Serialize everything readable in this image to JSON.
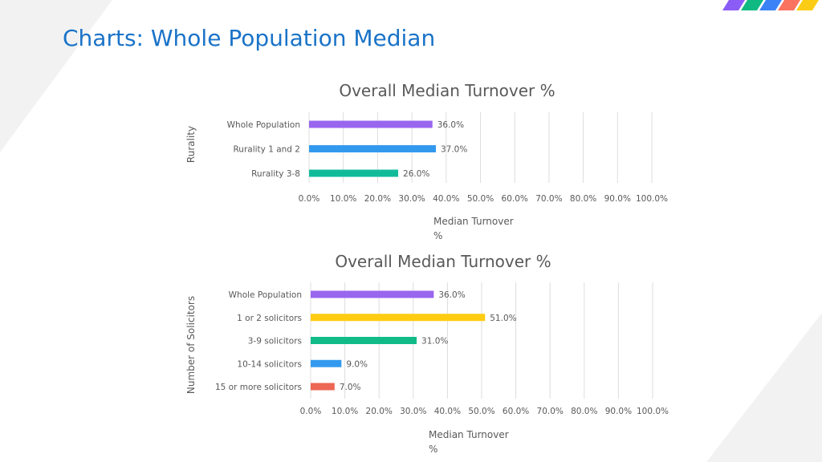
{
  "slide": {
    "title": "Charts: Whole Population Median",
    "colors": {
      "title": "#1a73c8",
      "gridline": "#dddddd",
      "text": "#595959"
    },
    "stripe_colors": [
      "#8b5cf6",
      "#10b981",
      "#3b82f6",
      "#f97360",
      "#facc15"
    ]
  },
  "chart_data": [
    {
      "type": "bar",
      "orientation": "horizontal",
      "title": "Overall Median Turnover %",
      "xlabel": "Median Turnover %",
      "ylabel": "Rurality",
      "xlim": [
        0,
        100
      ],
      "xticks": [
        "0.0%",
        "10.0%",
        "20.0%",
        "30.0%",
        "40.0%",
        "50.0%",
        "60.0%",
        "70.0%",
        "80.0%",
        "90.0%",
        "100.0%"
      ],
      "grid": true,
      "categories": [
        "Whole Population",
        "Rurality 1 and 2",
        "Rurality 3-8"
      ],
      "values": [
        36.0,
        37.0,
        26.0
      ],
      "value_labels": [
        "36.0%",
        "37.0%",
        "26.0%"
      ],
      "colors": [
        "#9966ee",
        "#3399ee",
        "#11bb99"
      ]
    },
    {
      "type": "bar",
      "orientation": "horizontal",
      "title": "Overall Median Turnover %",
      "xlabel": "Median Turnover %",
      "ylabel": "Number of Solicitors",
      "xlim": [
        0,
        100
      ],
      "xticks": [
        "0.0%",
        "10.0%",
        "20.0%",
        "30.0%",
        "40.0%",
        "50.0%",
        "60.0%",
        "70.0%",
        "80.0%",
        "90.0%",
        "100.0%"
      ],
      "grid": true,
      "categories": [
        "Whole Population",
        "1 or 2 solicitors",
        "3-9 solicitors",
        "10-14 solicitors",
        "15 or more solicitors"
      ],
      "values": [
        36.0,
        51.0,
        31.0,
        9.0,
        7.0
      ],
      "value_labels": [
        "36.0%",
        "51.0%",
        "31.0%",
        "9.0%",
        "7.0%"
      ],
      "colors": [
        "#9966ee",
        "#ffcc11",
        "#11bb88",
        "#3399ee",
        "#ee6655"
      ]
    }
  ]
}
